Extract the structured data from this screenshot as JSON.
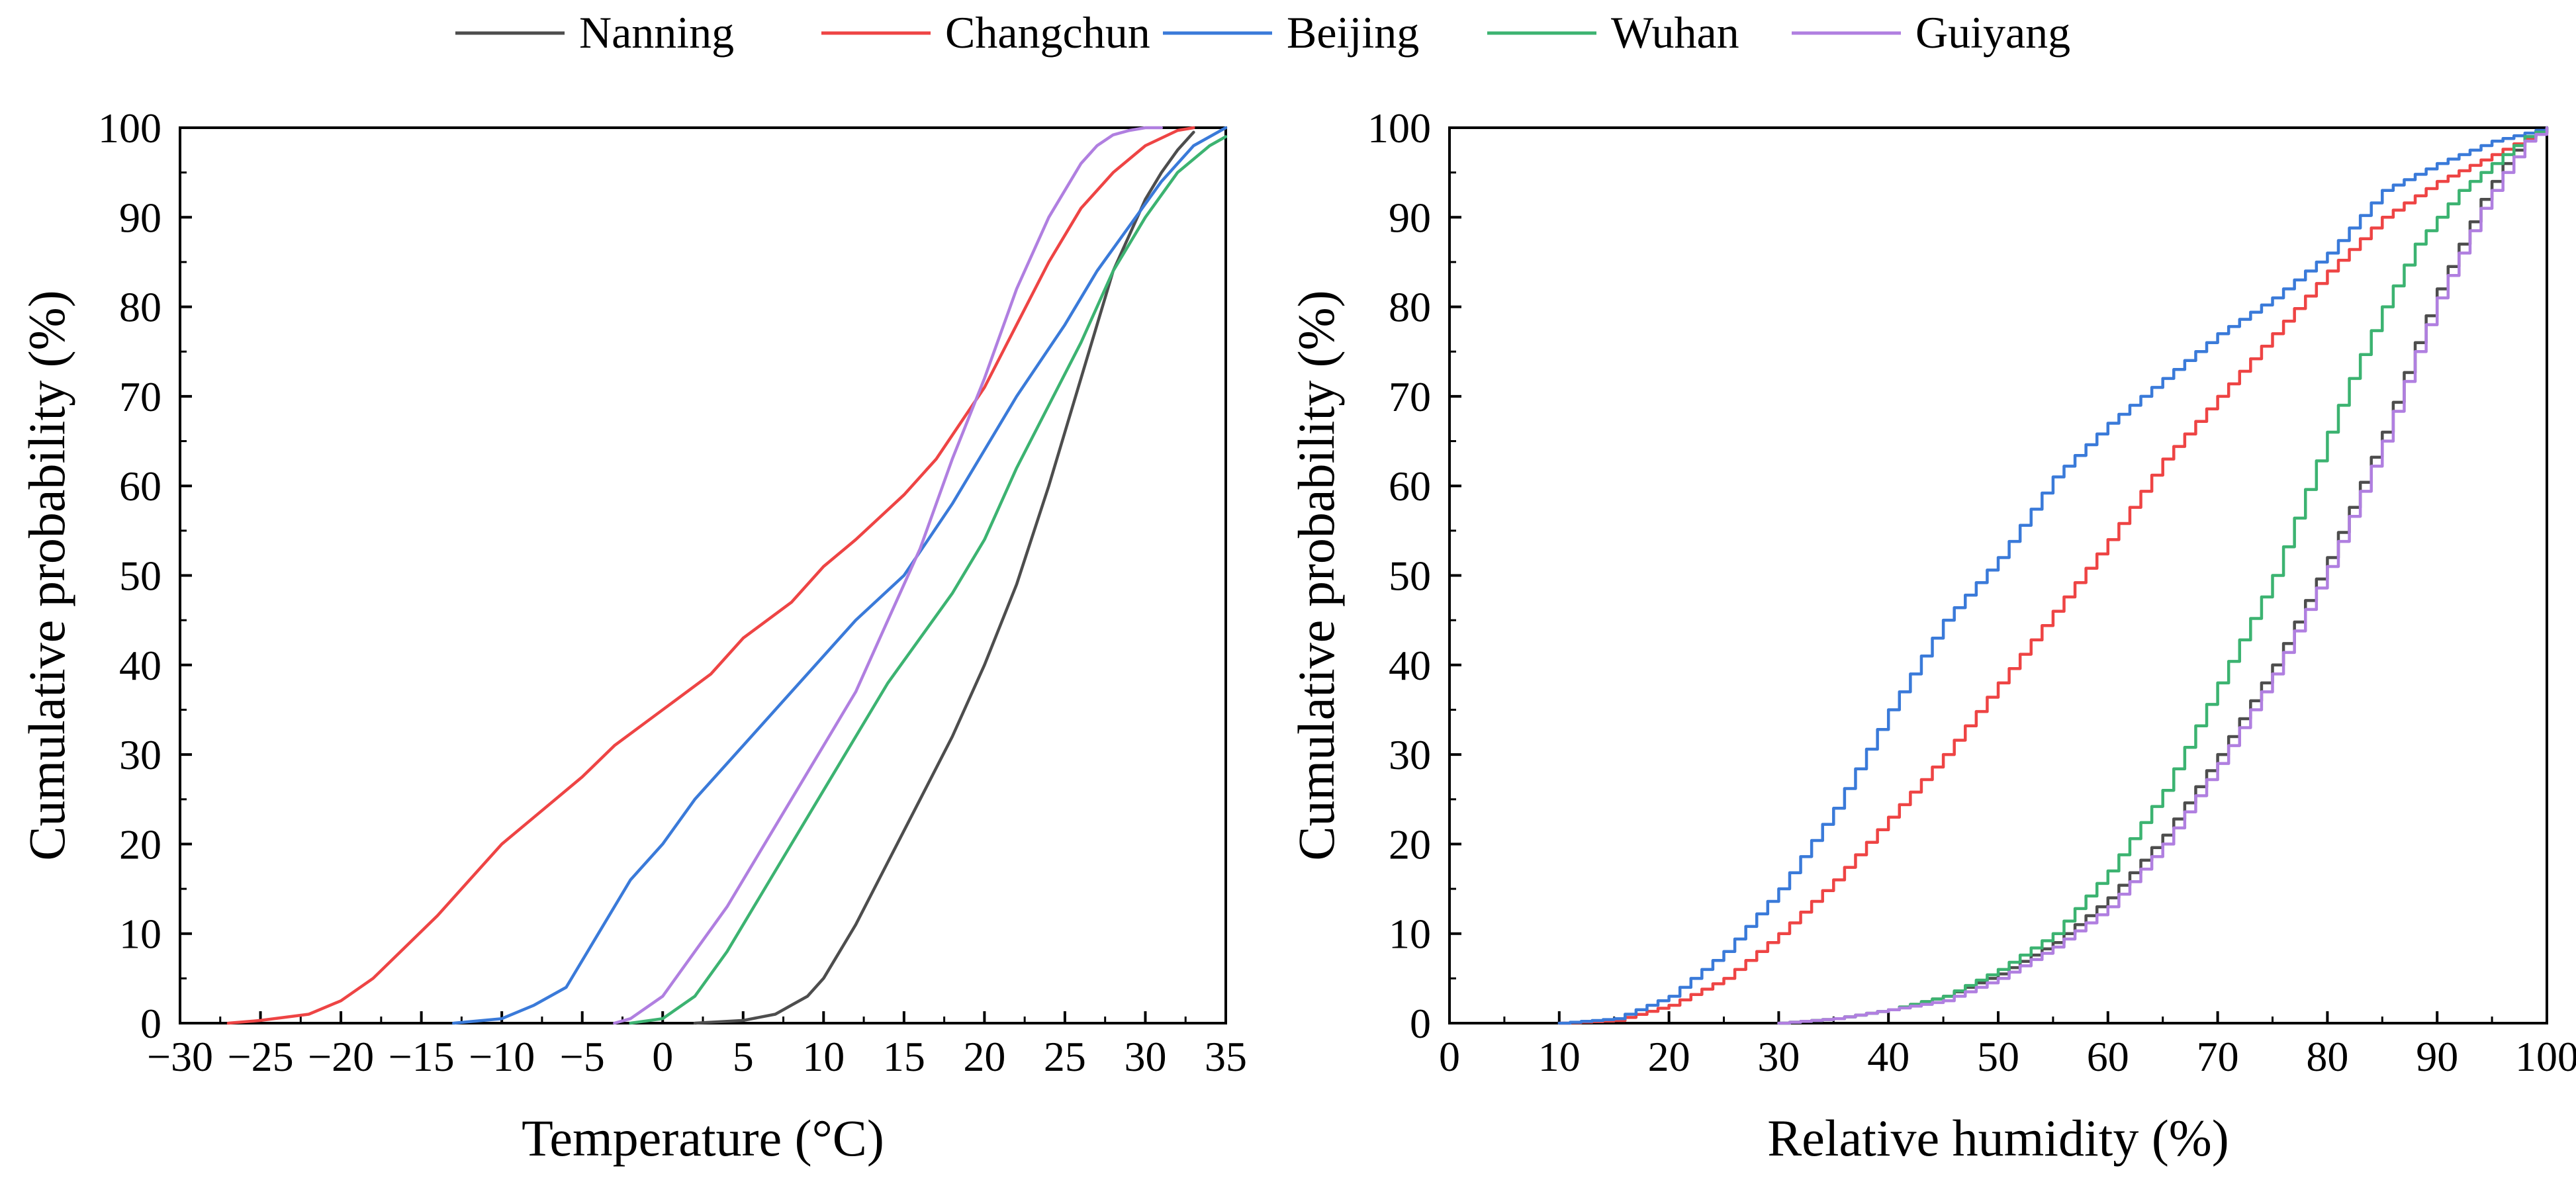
{
  "legend": {
    "entries": [
      {
        "name": "Nanning",
        "color": "#4d4d4d"
      },
      {
        "name": "Changchun",
        "color": "#ee4444"
      },
      {
        "name": "Beijing",
        "color": "#3a7ad9"
      },
      {
        "name": "Wuhan",
        "color": "#3cb371"
      },
      {
        "name": "Guiyang",
        "color": "#b07fe0"
      }
    ]
  },
  "chart_data": [
    {
      "type": "line",
      "title": "",
      "xlabel": "Temperature (°C)",
      "ylabel": "Cumulative probability (%)",
      "xlim": [
        -30,
        35
      ],
      "ylim": [
        0,
        100
      ],
      "xticks": [
        -30,
        -25,
        -20,
        -15,
        -10,
        -5,
        0,
        5,
        10,
        15,
        20,
        25,
        30,
        35
      ],
      "xtick_labels": [
        "−30",
        "−25",
        "−20",
        "−15",
        "−10",
        "−5",
        "0",
        "5",
        "10",
        "15",
        "20",
        "25",
        "30",
        "35"
      ],
      "yticks": [
        0,
        10,
        20,
        30,
        40,
        50,
        60,
        70,
        80,
        90,
        100
      ],
      "ytick_labels": [
        "0",
        "10",
        "20",
        "30",
        "40",
        "50",
        "60",
        "70",
        "80",
        "90",
        "100"
      ],
      "series": [
        {
          "name": "Nanning",
          "color": "#4d4d4d",
          "x": [
            2,
            5,
            7,
            8,
            9,
            10,
            11,
            12,
            14,
            16,
            18,
            20,
            22,
            24,
            25,
            26,
            27,
            28,
            29,
            30,
            31,
            32,
            33
          ],
          "y": [
            0,
            0.3,
            1,
            2,
            3,
            5,
            8,
            11,
            18,
            25,
            32,
            40,
            49,
            60,
            66,
            72,
            78,
            84,
            88,
            92,
            95,
            97.5,
            99.5
          ]
        },
        {
          "name": "Changchun",
          "color": "#ee4444",
          "x": [
            -27,
            -25,
            -22,
            -20,
            -18,
            -16,
            -14,
            -12,
            -10,
            -8,
            -5,
            -3,
            0,
            3,
            5,
            8,
            10,
            12,
            15,
            17,
            20,
            22,
            24,
            26,
            28,
            30,
            32,
            33
          ],
          "y": [
            0,
            0.3,
            1,
            2.5,
            5,
            8.5,
            12,
            16,
            20,
            23,
            27.5,
            31,
            35,
            39,
            43,
            47,
            51,
            54,
            59,
            63,
            71,
            78,
            85,
            91,
            95,
            98,
            99.7,
            100
          ]
        },
        {
          "name": "Beijing",
          "color": "#3a7ad9",
          "x": [
            -13,
            -10,
            -8,
            -6,
            -4,
            -2,
            0,
            2,
            5,
            8,
            10,
            12,
            15,
            18,
            20,
            22,
            25,
            27,
            29,
            31,
            33,
            35
          ],
          "y": [
            0,
            0.5,
            2,
            4,
            10,
            16,
            20,
            25,
            31,
            37,
            41,
            45,
            50,
            58,
            64,
            70,
            78,
            84,
            89,
            94,
            98,
            100
          ]
        },
        {
          "name": "Wuhan",
          "color": "#3cb371",
          "x": [
            -2,
            0,
            2,
            4,
            6,
            8,
            10,
            12,
            14,
            16,
            18,
            20,
            22,
            24,
            26,
            28,
            30,
            32,
            34,
            35
          ],
          "y": [
            0,
            0.5,
            3,
            8,
            14,
            20,
            26,
            32,
            38,
            43,
            48,
            54,
            62,
            69,
            76,
            84,
            90,
            95,
            98,
            99
          ]
        },
        {
          "name": "Guiyang",
          "color": "#b07fe0",
          "x": [
            -3,
            -2,
            0,
            2,
            4,
            6,
            8,
            10,
            12,
            14,
            16,
            18,
            20,
            22,
            24,
            26,
            27,
            28,
            29,
            30,
            31
          ],
          "y": [
            0,
            0.5,
            3,
            8,
            13,
            19,
            25,
            31,
            37,
            45,
            53,
            63,
            72,
            82,
            90,
            96,
            98,
            99.2,
            99.7,
            100,
            100
          ]
        }
      ]
    },
    {
      "type": "line",
      "title": "",
      "xlabel": "Relative humidity (%)",
      "ylabel": "Cumulative probability (%)",
      "xlim": [
        0,
        100
      ],
      "ylim": [
        0,
        100
      ],
      "xticks": [
        0,
        10,
        20,
        30,
        40,
        50,
        60,
        70,
        80,
        90,
        100
      ],
      "xtick_labels": [
        "0",
        "10",
        "20",
        "30",
        "40",
        "50",
        "60",
        "70",
        "80",
        "90",
        "100"
      ],
      "yticks": [
        0,
        10,
        20,
        30,
        40,
        50,
        60,
        70,
        80,
        90,
        100
      ],
      "ytick_labels": [
        "0",
        "10",
        "20",
        "30",
        "40",
        "50",
        "60",
        "70",
        "80",
        "90",
        "100"
      ],
      "step": true,
      "series": [
        {
          "name": "Nanning",
          "color": "#4d4d4d",
          "x": [
            30,
            35,
            40,
            45,
            50,
            55,
            60,
            65,
            70,
            75,
            80,
            85,
            88,
            90,
            92,
            94,
            96,
            98,
            100
          ],
          "y": [
            0,
            0.5,
            1.5,
            3,
            5.5,
            9,
            14,
            21,
            30,
            40,
            52,
            66,
            76,
            82,
            87,
            92,
            96,
            99,
            100
          ]
        },
        {
          "name": "Changchun",
          "color": "#ee4444",
          "x": [
            10,
            15,
            20,
            25,
            30,
            35,
            40,
            45,
            50,
            55,
            60,
            65,
            70,
            75,
            80,
            85,
            90,
            95,
            100
          ],
          "y": [
            0,
            0.3,
            2,
            5,
            10,
            16,
            23,
            30,
            38,
            46,
            54,
            63,
            70,
            77,
            84,
            90,
            94,
            97,
            100
          ]
        },
        {
          "name": "Beijing",
          "color": "#3a7ad9",
          "x": [
            10,
            15,
            20,
            25,
            30,
            35,
            40,
            45,
            50,
            55,
            60,
            65,
            70,
            75,
            80,
            85,
            90,
            95,
            100
          ],
          "y": [
            0,
            0.5,
            3,
            8,
            15,
            24,
            35,
            45,
            52,
            61,
            67,
            72,
            77,
            81,
            86,
            93,
            96,
            98.5,
            100
          ]
        },
        {
          "name": "Wuhan",
          "color": "#3cb371",
          "x": [
            30,
            35,
            40,
            45,
            50,
            55,
            60,
            65,
            70,
            75,
            80,
            82,
            85,
            88,
            90,
            92,
            95,
            98,
            100
          ],
          "y": [
            0,
            0.5,
            1.5,
            3,
            6,
            10,
            17,
            26,
            38,
            50,
            66,
            72,
            80,
            87,
            90,
            93,
            96,
            99,
            100
          ]
        },
        {
          "name": "Guiyang",
          "color": "#b07fe0",
          "x": [
            30,
            35,
            40,
            45,
            50,
            55,
            60,
            65,
            70,
            75,
            80,
            85,
            88,
            90,
            92,
            94,
            96,
            98,
            100
          ],
          "y": [
            0,
            0.5,
            1.5,
            2.5,
            5,
            8.5,
            13,
            20,
            29,
            39,
            51,
            65,
            75,
            81,
            86,
            91,
            95,
            98.5,
            100
          ]
        }
      ]
    }
  ]
}
